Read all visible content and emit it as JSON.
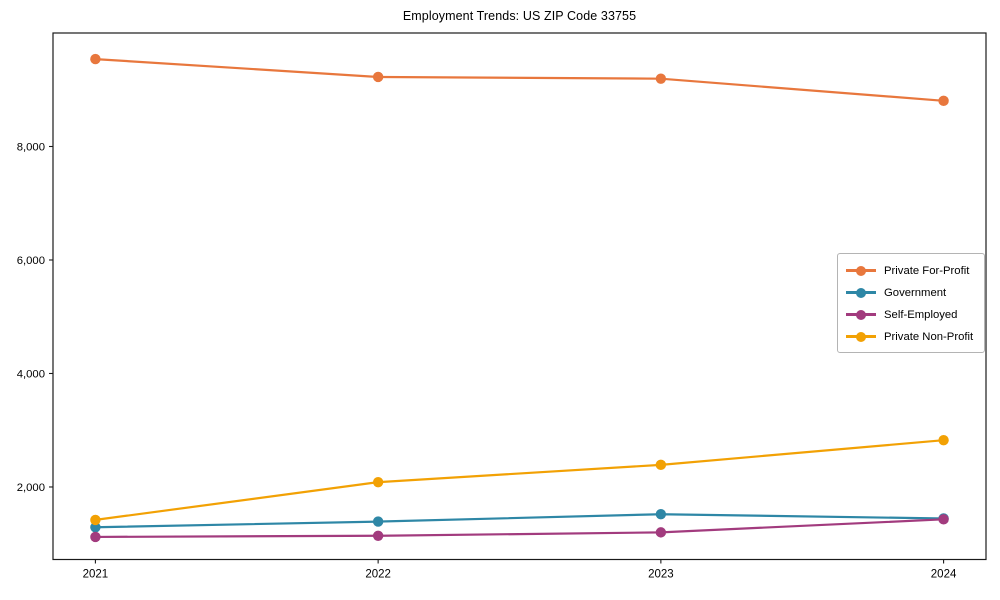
{
  "title": "Employment Trends: US ZIP Code 33755",
  "chart_data": {
    "type": "line",
    "title": "Employment Trends: US ZIP Code 33755",
    "xlabel": "",
    "ylabel": "",
    "x": [
      2021,
      2022,
      2023,
      2024
    ],
    "categories": [
      "2021",
      "2022",
      "2023",
      "2024"
    ],
    "series": [
      {
        "name": "Private For-Profit",
        "color": "#E8773D",
        "values": [
          9540,
          9225,
          9195,
          8805
        ]
      },
      {
        "name": "Government",
        "color": "#2E87A6",
        "values": [
          1290,
          1390,
          1520,
          1445
        ]
      },
      {
        "name": "Self-Employed",
        "color": "#A23B7E",
        "values": [
          1120,
          1140,
          1200,
          1430
        ]
      },
      {
        "name": "Private Non-Profit",
        "color": "#F2A104",
        "values": [
          1420,
          2085,
          2390,
          2825
        ]
      }
    ],
    "xlim": [
      2020.85,
      2024.15
    ],
    "ylim": [
      722,
      10000
    ],
    "yticks": [
      2000,
      4000,
      6000,
      8000
    ],
    "ytick_labels": [
      "2,000",
      "4,000",
      "6,000",
      "8,000"
    ],
    "grid": false,
    "legend_position": "center right",
    "marker": "circle",
    "axis_color": "#1a1a1a"
  }
}
